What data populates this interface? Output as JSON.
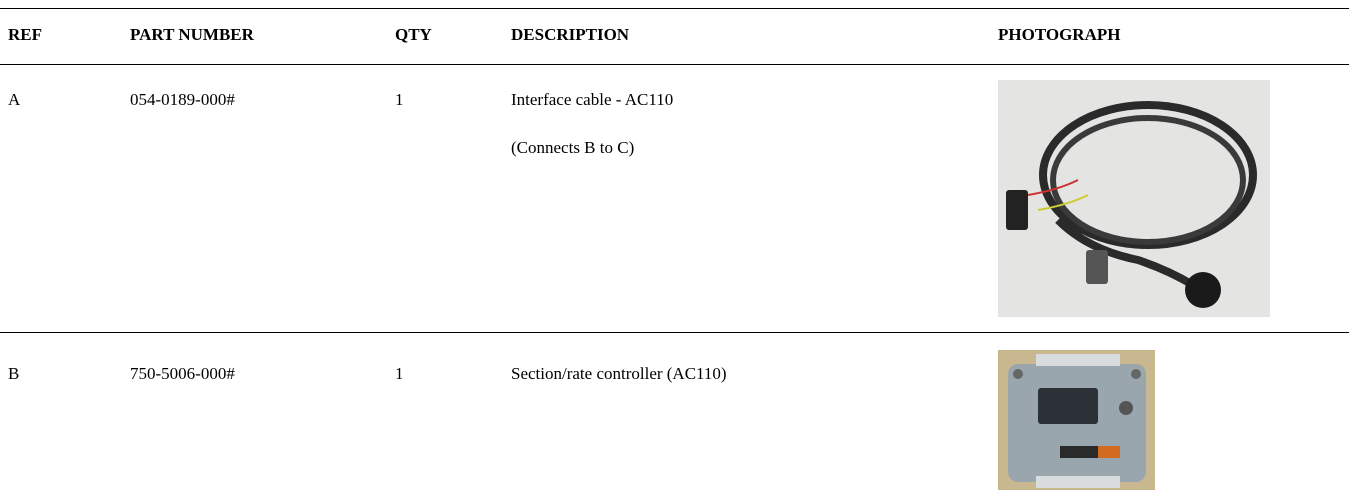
{
  "table": {
    "columns": [
      "REF",
      "PART NUMBER",
      "QTY",
      "DESCRIPTION",
      "PHOTOGRAPH"
    ],
    "rows": [
      {
        "ref": "A",
        "part_number": "054-0189-000#",
        "qty": 1,
        "description": [
          "Interface cable - AC110",
          "(Connects B to C)"
        ]
      },
      {
        "ref": "B",
        "part_number": "750-5006-000#",
        "qty": 1,
        "description": [
          "Section/rate controller (AC110)"
        ]
      }
    ]
  }
}
